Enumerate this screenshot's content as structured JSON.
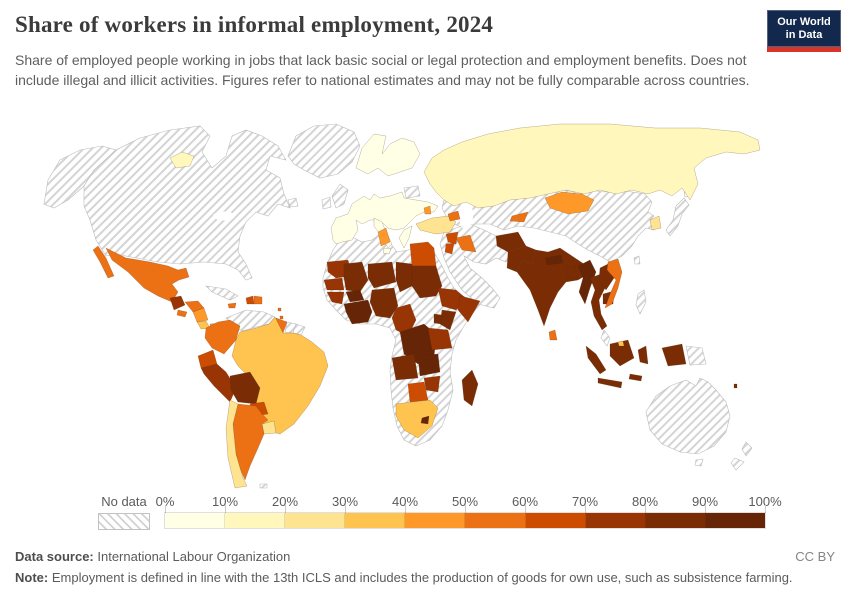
{
  "header": {
    "title": "Share of workers in informal employment, 2024",
    "subtitle": "Share of employed people working in jobs that lack basic social or legal protection and employment benefits. Does not include illegal and illicit activities. Figures refer to national estimates and may not be fully comparable across countries.",
    "logo": {
      "line1": "Our World",
      "line2": "in Data",
      "bg_color": "#12284C",
      "accent_color": "#D8352A"
    }
  },
  "legend": {
    "no_data_label": "No data",
    "tick_labels": [
      "0%",
      "10%",
      "20%",
      "30%",
      "40%",
      "50%",
      "60%",
      "70%",
      "80%",
      "90%",
      "100%"
    ]
  },
  "footer": {
    "source_label": "Data source:",
    "source_value": "International Labour Organization",
    "license": "CC BY",
    "note_label": "Note:",
    "note_text": "Employment is defined in line with the 13th ICLS and includes the production of goods for own use, such as subsistence farming."
  },
  "chart_data": {
    "type": "heatmap",
    "subtype": "choropleth-world-map",
    "title": "Share of workers in informal employment, 2024",
    "unit": "% of employed people in informal employment",
    "color_scale": {
      "scheme": "YlOrBr",
      "domain": [
        0,
        100
      ],
      "bin_size": 10,
      "bins": [
        {
          "range": "0–10%",
          "color": "#FFFFE5"
        },
        {
          "range": "10–20%",
          "color": "#FFF7BC"
        },
        {
          "range": "20–30%",
          "color": "#FEE391"
        },
        {
          "range": "30–40%",
          "color": "#FEC44F"
        },
        {
          "range": "40–50%",
          "color": "#FE9929"
        },
        {
          "range": "50–60%",
          "color": "#EC7014"
        },
        {
          "range": "60–70%",
          "color": "#CC4C02"
        },
        {
          "range": "70–80%",
          "color": "#993404"
        },
        {
          "range": "80–90%",
          "color": "#7A2D05"
        },
        {
          "range": "90–100%",
          "color": "#662506"
        }
      ]
    },
    "regions": [
      {
        "id": "iceland",
        "name": "Iceland",
        "value": "10–20%",
        "color": "#FFF7BC"
      },
      {
        "id": "europe-main",
        "name": "Western, Central & Eastern Europe (most countries)",
        "value": "0–10%",
        "color": "#FFFFE5"
      },
      {
        "id": "scandinavia",
        "name": "Norway, Sweden & Finland",
        "value": "0–10%",
        "color": "#FFFFE5"
      },
      {
        "id": "italy",
        "name": "Italy",
        "value": "0–10%",
        "color": "#FFFFE5"
      },
      {
        "id": "greece",
        "name": "Greece",
        "value": "0–10%",
        "color": "#FFFFE5"
      },
      {
        "id": "russia",
        "name": "Russia",
        "value": "10–20%",
        "color": "#FFF7BC"
      },
      {
        "id": "turkey",
        "name": "Türkiye",
        "value": "20–30%",
        "color": "#FEE391"
      },
      {
        "id": "moldova",
        "name": "Moldova",
        "value": "40–50%",
        "color": "#FE9929"
      },
      {
        "id": "azerbaijan",
        "name": "Azerbaijan",
        "value": "50–60%",
        "color": "#EC7014"
      },
      {
        "id": "syria",
        "name": "Syria",
        "value": "60–70%",
        "color": "#CC4C02"
      },
      {
        "id": "iraq",
        "name": "Iraq",
        "value": "50–60%",
        "color": "#EC7014"
      },
      {
        "id": "jordan",
        "name": "Jordan",
        "value": "60–70%",
        "color": "#CC4C02"
      },
      {
        "id": "egypt",
        "name": "Egypt",
        "value": "60–70%",
        "color": "#CC4C02"
      },
      {
        "id": "tunisia",
        "name": "Tunisia",
        "value": "40–50%",
        "color": "#FE9929"
      },
      {
        "id": "sudan",
        "name": "Sudan",
        "value": "80–90%",
        "color": "#7A2D05"
      },
      {
        "id": "mauritania",
        "name": "Mauritania",
        "value": "70–80%",
        "color": "#993404"
      },
      {
        "id": "senegal",
        "name": "Senegal & Gambia",
        "value": "70–80%",
        "color": "#993404"
      },
      {
        "id": "guinea-region",
        "name": "Guinea, Sierra Leone & Liberia",
        "value": "70–80%",
        "color": "#993404"
      },
      {
        "id": "mali",
        "name": "Mali",
        "value": "80–90%",
        "color": "#7A2D05"
      },
      {
        "id": "niger",
        "name": "Niger",
        "value": "80–90%",
        "color": "#7A2D05"
      },
      {
        "id": "chad",
        "name": "Chad",
        "value": "80–90%",
        "color": "#7A2D05"
      },
      {
        "id": "burkina-faso",
        "name": "Burkina Faso",
        "value": "90–100%",
        "color": "#662506"
      },
      {
        "id": "gulf-of-guinea-coast",
        "name": "Côte d'Ivoire, Ghana, Togo & Benin",
        "value": "90–100%",
        "color": "#662506"
      },
      {
        "id": "nigeria",
        "name": "Nigeria",
        "value": "80–90%",
        "color": "#7A2D05"
      },
      {
        "id": "cameroon-congo",
        "name": "Cameroon, Gabon & Congo",
        "value": "70–80%",
        "color": "#993404"
      },
      {
        "id": "drc",
        "name": "Democratic Republic of Congo",
        "value": "90–100%",
        "color": "#662506"
      },
      {
        "id": "ethiopia",
        "name": "Ethiopia",
        "value": "70–80%",
        "color": "#993404"
      },
      {
        "id": "somalia",
        "name": "Somalia",
        "value": "70–80%",
        "color": "#993404"
      },
      {
        "id": "kenya",
        "name": "Kenya",
        "value": "80–90%",
        "color": "#7A2D05"
      },
      {
        "id": "uganda",
        "name": "Uganda",
        "value": "80–90%",
        "color": "#7A2D05"
      },
      {
        "id": "tanzania",
        "name": "Tanzania",
        "value": "70–80%",
        "color": "#993404"
      },
      {
        "id": "angola",
        "name": "Angola",
        "value": "80–90%",
        "color": "#7A2D05"
      },
      {
        "id": "zambia",
        "name": "Zambia",
        "value": "90–100%",
        "color": "#662506"
      },
      {
        "id": "zimbabwe",
        "name": "Zimbabwe",
        "value": "70–80%",
        "color": "#993404"
      },
      {
        "id": "botswana",
        "name": "Botswana",
        "value": "60–70%",
        "color": "#CC4C02"
      },
      {
        "id": "south-africa",
        "name": "South Africa",
        "value": "30–40%",
        "color": "#FEC44F"
      },
      {
        "id": "lesotho",
        "name": "Lesotho",
        "value": "90–100%",
        "color": "#662506"
      },
      {
        "id": "madagascar",
        "name": "Madagascar",
        "value": "80–90%",
        "color": "#7A2D05"
      },
      {
        "id": "mongolia",
        "name": "Mongolia",
        "value": "40–50%",
        "color": "#FE9929"
      },
      {
        "id": "kyrgyzstan",
        "name": "Kyrgyzstan",
        "value": "50–60%",
        "color": "#EC7014"
      },
      {
        "id": "afghanistan",
        "name": "Afghanistan",
        "value": "80–90%",
        "color": "#7A2D05"
      },
      {
        "id": "pakistan",
        "name": "Pakistan",
        "value": "80–90%",
        "color": "#7A2D05"
      },
      {
        "id": "india",
        "name": "India",
        "value": "80–90%",
        "color": "#7A2D05"
      },
      {
        "id": "nepal",
        "name": "Nepal",
        "value": "90–100%",
        "color": "#662506"
      },
      {
        "id": "bangladesh",
        "name": "Bangladesh",
        "value": "80–90%",
        "color": "#7A2D05"
      },
      {
        "id": "sri-lanka",
        "name": "Sri Lanka",
        "value": "50–60%",
        "color": "#EC7014"
      },
      {
        "id": "myanmar",
        "name": "Myanmar",
        "value": "90–100%",
        "color": "#662506"
      },
      {
        "id": "thailand",
        "name": "Thailand",
        "value": "80–90%",
        "color": "#7A2D05"
      },
      {
        "id": "laos",
        "name": "Laos",
        "value": "80–90%",
        "color": "#7A2D05"
      },
      {
        "id": "cambodia",
        "name": "Cambodia",
        "value": "80–90%",
        "color": "#7A2D05"
      },
      {
        "id": "vietnam",
        "name": "Vietnam",
        "value": "50–60%",
        "color": "#EC7014"
      },
      {
        "id": "south-korea",
        "name": "South Korea",
        "value": "20–30%",
        "color": "#FEE391"
      },
      {
        "id": "indonesia",
        "name": "Indonesia",
        "value": "80–90%",
        "color": "#7A2D05"
      },
      {
        "id": "brunei",
        "name": "Brunei",
        "value": "30–40%",
        "color": "#FEC44F"
      },
      {
        "id": "vanuatu",
        "name": "Vanuatu",
        "value": "80–90%",
        "color": "#7A2D05"
      },
      {
        "id": "mexico",
        "name": "Mexico",
        "value": "50–60%",
        "color": "#EC7014"
      },
      {
        "id": "guatemala",
        "name": "Guatemala",
        "value": "70–80%",
        "color": "#993404"
      },
      {
        "id": "honduras",
        "name": "Honduras",
        "value": "50–60%",
        "color": "#EC7014"
      },
      {
        "id": "el-salvador",
        "name": "El Salvador",
        "value": "50–60%",
        "color": "#EC7014"
      },
      {
        "id": "nicaragua",
        "name": "Nicaragua",
        "value": "40–50%",
        "color": "#FE9929"
      },
      {
        "id": "costa-rica",
        "name": "Costa Rica",
        "value": "30–40%",
        "color": "#FEC44F"
      },
      {
        "id": "panama",
        "name": "Panama",
        "value": "40–50%",
        "color": "#FE9929"
      },
      {
        "id": "jamaica",
        "name": "Jamaica",
        "value": "50–60%",
        "color": "#EC7014"
      },
      {
        "id": "haiti",
        "name": "Haiti",
        "value": "60–70%",
        "color": "#CC4C02"
      },
      {
        "id": "dominican-republic",
        "name": "Dominican Republic",
        "value": "50–60%",
        "color": "#EC7014"
      },
      {
        "id": "lesser-antilles",
        "name": "Lesser Antilles",
        "value": "50–60%",
        "color": "#EC7014"
      },
      {
        "id": "colombia",
        "name": "Colombia",
        "value": "50–60%",
        "color": "#EC7014"
      },
      {
        "id": "guyana",
        "name": "Guyana",
        "value": "50–60%",
        "color": "#EC7014"
      },
      {
        "id": "ecuador",
        "name": "Ecuador",
        "value": "60–70%",
        "color": "#CC4C02"
      },
      {
        "id": "peru",
        "name": "Peru",
        "value": "70–80%",
        "color": "#993404"
      },
      {
        "id": "bolivia",
        "name": "Bolivia",
        "value": "80–90%",
        "color": "#7A2D05"
      },
      {
        "id": "brazil",
        "name": "Brazil",
        "value": "30–40%",
        "color": "#FEC44F"
      },
      {
        "id": "paraguay",
        "name": "Paraguay",
        "value": "60–70%",
        "color": "#CC4C02"
      },
      {
        "id": "uruguay",
        "name": "Uruguay",
        "value": "20–30%",
        "color": "#FEE391"
      },
      {
        "id": "argentina",
        "name": "Argentina",
        "value": "50–60%",
        "color": "#EC7014"
      },
      {
        "id": "chile",
        "name": "Chile",
        "value": "20–30%",
        "color": "#FEE391"
      }
    ],
    "no_data": {
      "label": "No data",
      "region_ids": [
        "alaska",
        "canada-usa",
        "newfoundland",
        "greenland",
        "cuba",
        "venezuela",
        "suriname",
        "french-guiana",
        "falkland-islands",
        "united-kingdom",
        "ireland",
        "belarus",
        "africa-nodata",
        "central-asia-china",
        "arabia-iran",
        "japan",
        "taiwan",
        "philippines",
        "malaysia",
        "papua-new-guinea",
        "australia",
        "tasmania",
        "new-zealand-north",
        "new-zealand-south"
      ],
      "countries": [
        "Canada",
        "United States",
        "Greenland",
        "Cuba",
        "Venezuela",
        "Suriname",
        "French Guiana",
        "United Kingdom",
        "Ireland",
        "Belarus",
        "Morocco",
        "Algeria",
        "Libya",
        "Central African Republic",
        "South Sudan",
        "Eritrea",
        "Namibia",
        "Mozambique",
        "Saudi Arabia",
        "Yemen",
        "Oman",
        "Iran",
        "Kazakhstan",
        "Uzbekistan",
        "Turkmenistan",
        "China",
        "North Korea",
        "Japan",
        "Taiwan",
        "Philippines",
        "Malaysia",
        "Papua New Guinea",
        "Australia",
        "New Zealand"
      ]
    }
  }
}
